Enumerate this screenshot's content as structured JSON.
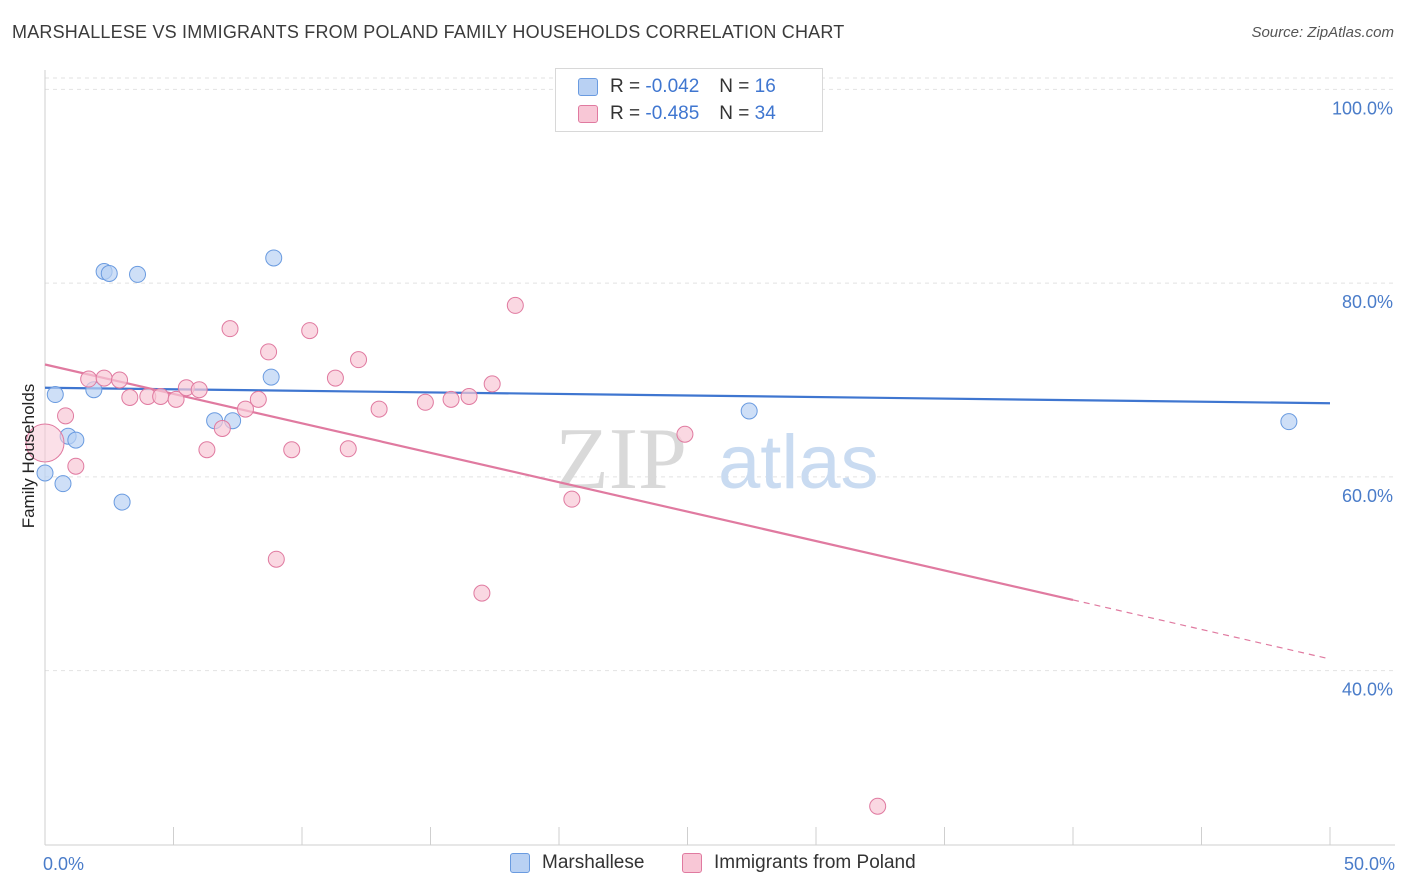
{
  "title": "MARSHALLESE VS IMMIGRANTS FROM POLAND FAMILY HOUSEHOLDS CORRELATION CHART",
  "source": "Source: ZipAtlas.com",
  "watermark": {
    "part1": "ZIP",
    "part2": "atlas"
  },
  "legend": {
    "series1": {
      "r_label": "R = ",
      "r_value": "-0.042",
      "n_label": "N = ",
      "n_value": "16"
    },
    "series2": {
      "r_label": "R = ",
      "r_value": "-0.485",
      "n_label": "N = ",
      "n_value": "34"
    }
  },
  "chart_data": {
    "type": "scatter",
    "ylabel": "Family Households",
    "xlim": [
      0,
      50
    ],
    "ylim": [
      22,
      102
    ],
    "x_tick_labels": [
      {
        "value": 0,
        "label": "0.0%"
      },
      {
        "value": 50,
        "label": "50.0%"
      }
    ],
    "y_tick_labels": [
      {
        "value": 100,
        "label": "100.0%"
      },
      {
        "value": 80,
        "label": "80.0%"
      },
      {
        "value": 60,
        "label": "60.0%"
      },
      {
        "value": 40,
        "label": "40.0%"
      }
    ],
    "grid": "horizontal dashed",
    "legend_placement": "top-center and bottom",
    "series": [
      {
        "name": "Marshallese",
        "color": "#6a9be0",
        "fill": "#b9d1f3",
        "points": [
          [
            0.4,
            68.5
          ],
          [
            0.9,
            64.2
          ],
          [
            1.2,
            63.8
          ],
          [
            2.3,
            81.2
          ],
          [
            2.5,
            81.0
          ],
          [
            3.6,
            80.9
          ],
          [
            8.9,
            82.6
          ],
          [
            1.9,
            69.0
          ],
          [
            8.8,
            70.3
          ],
          [
            6.6,
            65.8
          ],
          [
            7.3,
            65.8
          ],
          [
            0.0,
            60.4
          ],
          [
            0.7,
            59.3
          ],
          [
            3.0,
            57.4
          ],
          [
            27.4,
            66.8
          ],
          [
            48.4,
            65.7
          ]
        ],
        "trend": {
          "x": [
            0,
            50
          ],
          "y": [
            69.2,
            67.6
          ]
        }
      },
      {
        "name": "Immigrants from Poland",
        "color": "#e07aa0",
        "fill": "#f8c7d6",
        "points": [
          [
            0.0,
            63.5
          ],
          [
            0.8,
            66.3
          ],
          [
            1.2,
            61.1
          ],
          [
            1.7,
            70.1
          ],
          [
            2.3,
            70.2
          ],
          [
            2.9,
            70.0
          ],
          [
            3.3,
            68.2
          ],
          [
            4.0,
            68.3
          ],
          [
            4.5,
            68.3
          ],
          [
            5.1,
            68.0
          ],
          [
            5.5,
            69.2
          ],
          [
            6.0,
            69.0
          ],
          [
            6.3,
            62.8
          ],
          [
            6.9,
            65.0
          ],
          [
            7.2,
            75.3
          ],
          [
            7.8,
            67.0
          ],
          [
            8.3,
            68.0
          ],
          [
            8.7,
            72.9
          ],
          [
            9.6,
            62.8
          ],
          [
            10.3,
            75.1
          ],
          [
            11.3,
            70.2
          ],
          [
            11.8,
            62.9
          ],
          [
            12.2,
            72.1
          ],
          [
            13.0,
            67.0
          ],
          [
            14.8,
            67.7
          ],
          [
            15.8,
            68.0
          ],
          [
            16.5,
            68.3
          ],
          [
            17.4,
            69.6
          ],
          [
            18.3,
            77.7
          ],
          [
            20.5,
            57.7
          ],
          [
            24.9,
            64.4
          ],
          [
            9.0,
            51.5
          ],
          [
            17.0,
            48.0
          ],
          [
            32.4,
            26.0
          ]
        ],
        "trend": {
          "x": [
            0,
            40,
            50
          ],
          "y": [
            71.6,
            47.3,
            41.2
          ],
          "solid_until": 40
        }
      }
    ]
  },
  "bottom_legend": {
    "items": [
      {
        "label": "Marshallese"
      },
      {
        "label": "Immigrants from Poland"
      }
    ]
  }
}
